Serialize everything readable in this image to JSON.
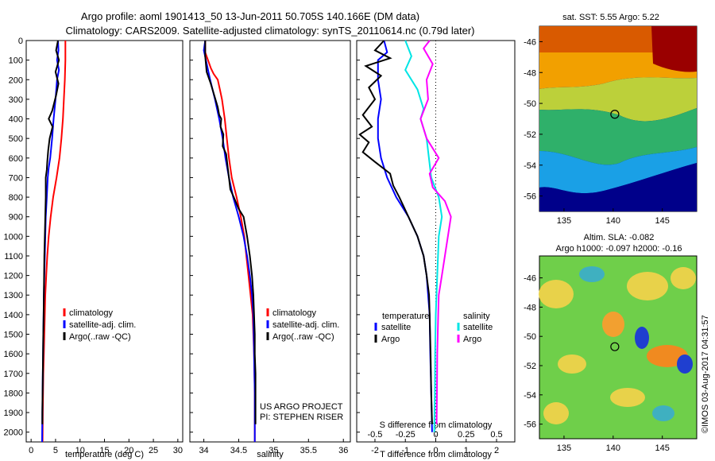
{
  "title": {
    "line1": "Argo profile: aoml 1901413_50 13-Jun-2011 50.705S 140.166E (DM data)",
    "line2": "Climatology: CARS2009. Satellite-adjusted climatology: synTS_20110614.nc (0.79d later)"
  },
  "colors": {
    "climatology": "#ff0000",
    "satellite": "#0000ff",
    "argo": "#000000",
    "sal_satellite": "#00e5e5",
    "sal_argo": "#ff00ff"
  },
  "chart_data": [
    {
      "type": "line",
      "name": "temperature",
      "xlabel": "temperature (deg C)",
      "ylabel": "",
      "xlim": [
        -1,
        31
      ],
      "ylim": [
        2050,
        0
      ],
      "xticks": [
        0,
        5,
        10,
        15,
        20,
        25,
        30
      ],
      "yticks": [
        0,
        100,
        200,
        300,
        400,
        500,
        600,
        700,
        800,
        900,
        1000,
        1100,
        1200,
        1300,
        1400,
        1500,
        1600,
        1700,
        1800,
        1900,
        2000
      ],
      "legend": [
        "climatology",
        "satellite-adj. clim.",
        "Argo(..raw -QC)"
      ],
      "series": [
        {
          "name": "climatology",
          "color": "#ff0000",
          "points": [
            [
              7.0,
              0
            ],
            [
              7.0,
              100
            ],
            [
              6.9,
              200
            ],
            [
              6.7,
              300
            ],
            [
              6.5,
              400
            ],
            [
              6.2,
              500
            ],
            [
              5.8,
              600
            ],
            [
              5.2,
              700
            ],
            [
              4.5,
              800
            ],
            [
              4.0,
              900
            ],
            [
              3.6,
              1000
            ],
            [
              3.3,
              1100
            ],
            [
              3.1,
              1200
            ],
            [
              2.9,
              1300
            ],
            [
              2.8,
              1400
            ],
            [
              2.7,
              1500
            ],
            [
              2.6,
              1600
            ],
            [
              2.5,
              1700
            ],
            [
              2.45,
              1800
            ],
            [
              2.4,
              1900
            ],
            [
              2.35,
              2050
            ]
          ]
        },
        {
          "name": "satellite-adj. clim.",
          "color": "#0000ff",
          "points": [
            [
              5.5,
              0
            ],
            [
              5.6,
              50
            ],
            [
              5.3,
              100
            ],
            [
              5.7,
              150
            ],
            [
              5.3,
              200
            ],
            [
              5.0,
              300
            ],
            [
              4.6,
              400
            ],
            [
              4.3,
              500
            ],
            [
              3.9,
              600
            ],
            [
              3.6,
              650
            ],
            [
              3.4,
              700
            ],
            [
              3.2,
              800
            ],
            [
              3.0,
              900
            ],
            [
              2.9,
              1000
            ],
            [
              2.8,
              1100
            ],
            [
              2.7,
              1200
            ],
            [
              2.6,
              1300
            ],
            [
              2.55,
              1400
            ],
            [
              2.5,
              1500
            ],
            [
              2.45,
              1600
            ],
            [
              2.4,
              1700
            ],
            [
              2.35,
              1800
            ],
            [
              2.3,
              1900
            ],
            [
              2.25,
              2050
            ]
          ]
        },
        {
          "name": "Argo(..raw -QC)",
          "color": "#000000",
          "points": [
            [
              5.5,
              0
            ],
            [
              5.1,
              50
            ],
            [
              5.7,
              100
            ],
            [
              5.0,
              160
            ],
            [
              5.6,
              220
            ],
            [
              5.1,
              280
            ],
            [
              4.3,
              360
            ],
            [
              3.6,
              400
            ],
            [
              4.4,
              440
            ],
            [
              3.8,
              500
            ],
            [
              3.5,
              560
            ],
            [
              3.3,
              620
            ],
            [
              3.2,
              660
            ],
            [
              3.0,
              700
            ],
            [
              3.0,
              800
            ],
            [
              2.9,
              900
            ],
            [
              2.8,
              1000
            ],
            [
              2.7,
              1100
            ],
            [
              2.65,
              1200
            ],
            [
              2.6,
              1300
            ],
            [
              2.55,
              1400
            ],
            [
              2.5,
              1500
            ],
            [
              2.45,
              1600
            ],
            [
              2.4,
              1700
            ],
            [
              2.35,
              1800
            ],
            [
              2.3,
              1900
            ],
            [
              2.3,
              1960
            ]
          ]
        }
      ]
    },
    {
      "type": "line",
      "name": "salinity",
      "xlabel": "salinity",
      "ylabel": "",
      "xlim": [
        33.8,
        36.1
      ],
      "ylim": [
        2050,
        0
      ],
      "xticks": [
        34,
        34.5,
        35,
        35.5,
        36
      ],
      "xtick_labels": [
        "34",
        "34.5",
        "35",
        "35.5",
        "36"
      ],
      "legend": [
        "climatology",
        "satellite-adj. clim.",
        "Argo(..raw -QC)"
      ],
      "annotation": [
        "US ARGO PROJECT",
        "PI: STEPHEN RISER"
      ],
      "series": [
        {
          "name": "climatology",
          "color": "#ff0000",
          "points": [
            [
              34.02,
              0
            ],
            [
              34.02,
              60
            ],
            [
              34.06,
              100
            ],
            [
              34.1,
              140
            ],
            [
              34.14,
              170
            ],
            [
              34.2,
              200
            ],
            [
              34.23,
              250
            ],
            [
              34.26,
              300
            ],
            [
              34.3,
              400
            ],
            [
              34.33,
              500
            ],
            [
              34.36,
              600
            ],
            [
              34.4,
              700
            ],
            [
              34.47,
              800
            ],
            [
              34.53,
              900
            ],
            [
              34.58,
              1000
            ],
            [
              34.61,
              1100
            ],
            [
              34.64,
              1200
            ],
            [
              34.67,
              1300
            ],
            [
              34.7,
              1400
            ],
            [
              34.72,
              1600
            ],
            [
              34.73,
              1800
            ],
            [
              34.73,
              2050
            ]
          ]
        },
        {
          "name": "satellite-adj. clim.",
          "color": "#0000ff",
          "points": [
            [
              34.02,
              0
            ],
            [
              34.0,
              50
            ],
            [
              34.03,
              100
            ],
            [
              34.09,
              200
            ],
            [
              34.16,
              300
            ],
            [
              34.22,
              400
            ],
            [
              34.27,
              500
            ],
            [
              34.31,
              600
            ],
            [
              34.36,
              700
            ],
            [
              34.42,
              800
            ],
            [
              34.5,
              900
            ],
            [
              34.57,
              1000
            ],
            [
              34.62,
              1100
            ],
            [
              34.66,
              1200
            ],
            [
              34.69,
              1300
            ],
            [
              34.71,
              1400
            ],
            [
              34.72,
              1600
            ],
            [
              34.73,
              1800
            ],
            [
              34.73,
              2050
            ]
          ]
        },
        {
          "name": "Argo(..raw -QC)",
          "color": "#000000",
          "points": [
            [
              34.02,
              0
            ],
            [
              34.02,
              80
            ],
            [
              34.04,
              160
            ],
            [
              34.1,
              220
            ],
            [
              34.15,
              280
            ],
            [
              34.2,
              340
            ],
            [
              34.22,
              380
            ],
            [
              34.25,
              400
            ],
            [
              34.24,
              440
            ],
            [
              34.28,
              480
            ],
            [
              34.27,
              540
            ],
            [
              34.32,
              580
            ],
            [
              34.34,
              640
            ],
            [
              34.36,
              700
            ],
            [
              34.38,
              760
            ],
            [
              34.43,
              800
            ],
            [
              34.5,
              860
            ],
            [
              34.57,
              900
            ],
            [
              34.62,
              1000
            ],
            [
              34.66,
              1100
            ],
            [
              34.69,
              1200
            ],
            [
              34.71,
              1300
            ],
            [
              34.72,
              1400
            ],
            [
              34.73,
              1500
            ],
            [
              34.73,
              1600
            ],
            [
              34.74,
              1700
            ],
            [
              34.74,
              1800
            ],
            [
              34.74,
              1900
            ],
            [
              34.74,
              1960
            ]
          ]
        }
      ]
    },
    {
      "type": "line",
      "name": "difference",
      "xlabel": "T difference from climatology",
      "top_label": "S difference from climatology",
      "xlim": [
        -2.6,
        2.6
      ],
      "ylim": [
        2050,
        0
      ],
      "xticks": [
        -2,
        -1,
        0,
        1,
        2
      ],
      "xtick_labels": [
        "-2",
        "-1",
        "0",
        "1",
        "2"
      ],
      "sticks": [
        -2,
        -1,
        0,
        1,
        2
      ],
      "stick_labels": [
        "-0.5",
        "-0.25",
        "0",
        "0.25",
        "0.5"
      ],
      "legend_titles": [
        "temperature",
        "salinity"
      ],
      "legend_temperature": [
        "satellite",
        "Argo"
      ],
      "legend_salinity": [
        "satellite",
        "Argo"
      ],
      "series": [
        {
          "name": "temperature satellite",
          "color": "#0000ff",
          "points": [
            [
              -1.7,
              0
            ],
            [
              -1.6,
              60
            ],
            [
              -1.9,
              100
            ],
            [
              -1.9,
              200
            ],
            [
              -1.8,
              300
            ],
            [
              -1.9,
              400
            ],
            [
              -1.9,
              500
            ],
            [
              -1.8,
              600
            ],
            [
              -1.6,
              700
            ],
            [
              -1.3,
              800
            ],
            [
              -0.9,
              900
            ],
            [
              -0.6,
              1000
            ],
            [
              -0.4,
              1100
            ],
            [
              -0.3,
              1200
            ],
            [
              -0.25,
              1300
            ],
            [
              -0.2,
              1400
            ],
            [
              -0.18,
              1600
            ],
            [
              -0.15,
              1800
            ],
            [
              -0.12,
              2000
            ]
          ]
        },
        {
          "name": "temperature Argo",
          "color": "#000000",
          "points": [
            [
              -1.7,
              0
            ],
            [
              -2.0,
              50
            ],
            [
              -1.5,
              90
            ],
            [
              -2.3,
              130
            ],
            [
              -1.8,
              180
            ],
            [
              -2.2,
              240
            ],
            [
              -2.0,
              300
            ],
            [
              -2.4,
              380
            ],
            [
              -2.1,
              440
            ],
            [
              -2.5,
              480
            ],
            [
              -2.2,
              520
            ],
            [
              -2.4,
              570
            ],
            [
              -2.0,
              620
            ],
            [
              -1.5,
              680
            ],
            [
              -1.4,
              740
            ],
            [
              -1.2,
              800
            ],
            [
              -0.9,
              900
            ],
            [
              -0.6,
              1000
            ],
            [
              -0.4,
              1100
            ],
            [
              -0.3,
              1200
            ],
            [
              -0.22,
              1300
            ],
            [
              -0.2,
              1400
            ],
            [
              -0.17,
              1600
            ],
            [
              -0.15,
              1800
            ],
            [
              -0.12,
              1960
            ]
          ]
        },
        {
          "name": "salinity satellite",
          "color": "#00e5e5",
          "points": [
            [
              -1.0,
              0
            ],
            [
              -0.8,
              80
            ],
            [
              -1.0,
              150
            ],
            [
              -0.6,
              250
            ],
            [
              -0.4,
              350
            ],
            [
              -0.5,
              400
            ],
            [
              -0.3,
              500
            ],
            [
              -0.15,
              700
            ],
            [
              0.1,
              800
            ],
            [
              0.2,
              900
            ],
            [
              0.1,
              1000
            ],
            [
              0.05,
              1200
            ],
            [
              0.0,
              1400
            ],
            [
              -0.02,
              1600
            ],
            [
              -0.03,
              1800
            ],
            [
              -0.05,
              2000
            ]
          ]
        },
        {
          "name": "salinity Argo",
          "color": "#ff00ff",
          "points": [
            [
              -0.2,
              0
            ],
            [
              -0.4,
              40
            ],
            [
              -0.1,
              120
            ],
            [
              -0.3,
              200
            ],
            [
              -0.25,
              300
            ],
            [
              -0.5,
              400
            ],
            [
              -0.3,
              500
            ],
            [
              0.1,
              600
            ],
            [
              -0.2,
              680
            ],
            [
              -0.1,
              750
            ],
            [
              0.3,
              820
            ],
            [
              0.5,
              900
            ],
            [
              0.4,
              1000
            ],
            [
              0.3,
              1100
            ],
            [
              0.2,
              1200
            ],
            [
              0.1,
              1300
            ],
            [
              0.08,
              1400
            ],
            [
              0.05,
              1600
            ],
            [
              0.04,
              1800
            ],
            [
              0.03,
              1960
            ]
          ]
        }
      ]
    },
    {
      "type": "heatmap",
      "name": "sst map",
      "title": "sat. SST: 5.55  Argo: 5.22",
      "xlim": [
        132.5,
        148.5
      ],
      "ylim": [
        -57,
        -45
      ],
      "xticks": [
        135,
        140,
        145
      ],
      "yticks": [
        -46,
        -48,
        -50,
        -52,
        -54,
        -56
      ],
      "marker": [
        140.166,
        -50.705
      ]
    },
    {
      "type": "heatmap",
      "name": "sla map",
      "title_line1": "Altim. SLA: -0.082",
      "title_line2": "Argo h1000: -0.097  h2000: -0.16",
      "xlim": [
        132.5,
        148.5
      ],
      "ylim": [
        -57,
        -44.5
      ],
      "xticks": [
        135,
        140,
        145
      ],
      "yticks": [
        -46,
        -48,
        -50,
        -52,
        -54,
        -56
      ],
      "marker": [
        140.166,
        -50.705
      ]
    }
  ],
  "credit": "©IMOS 03-Aug-2017 04:31:57"
}
